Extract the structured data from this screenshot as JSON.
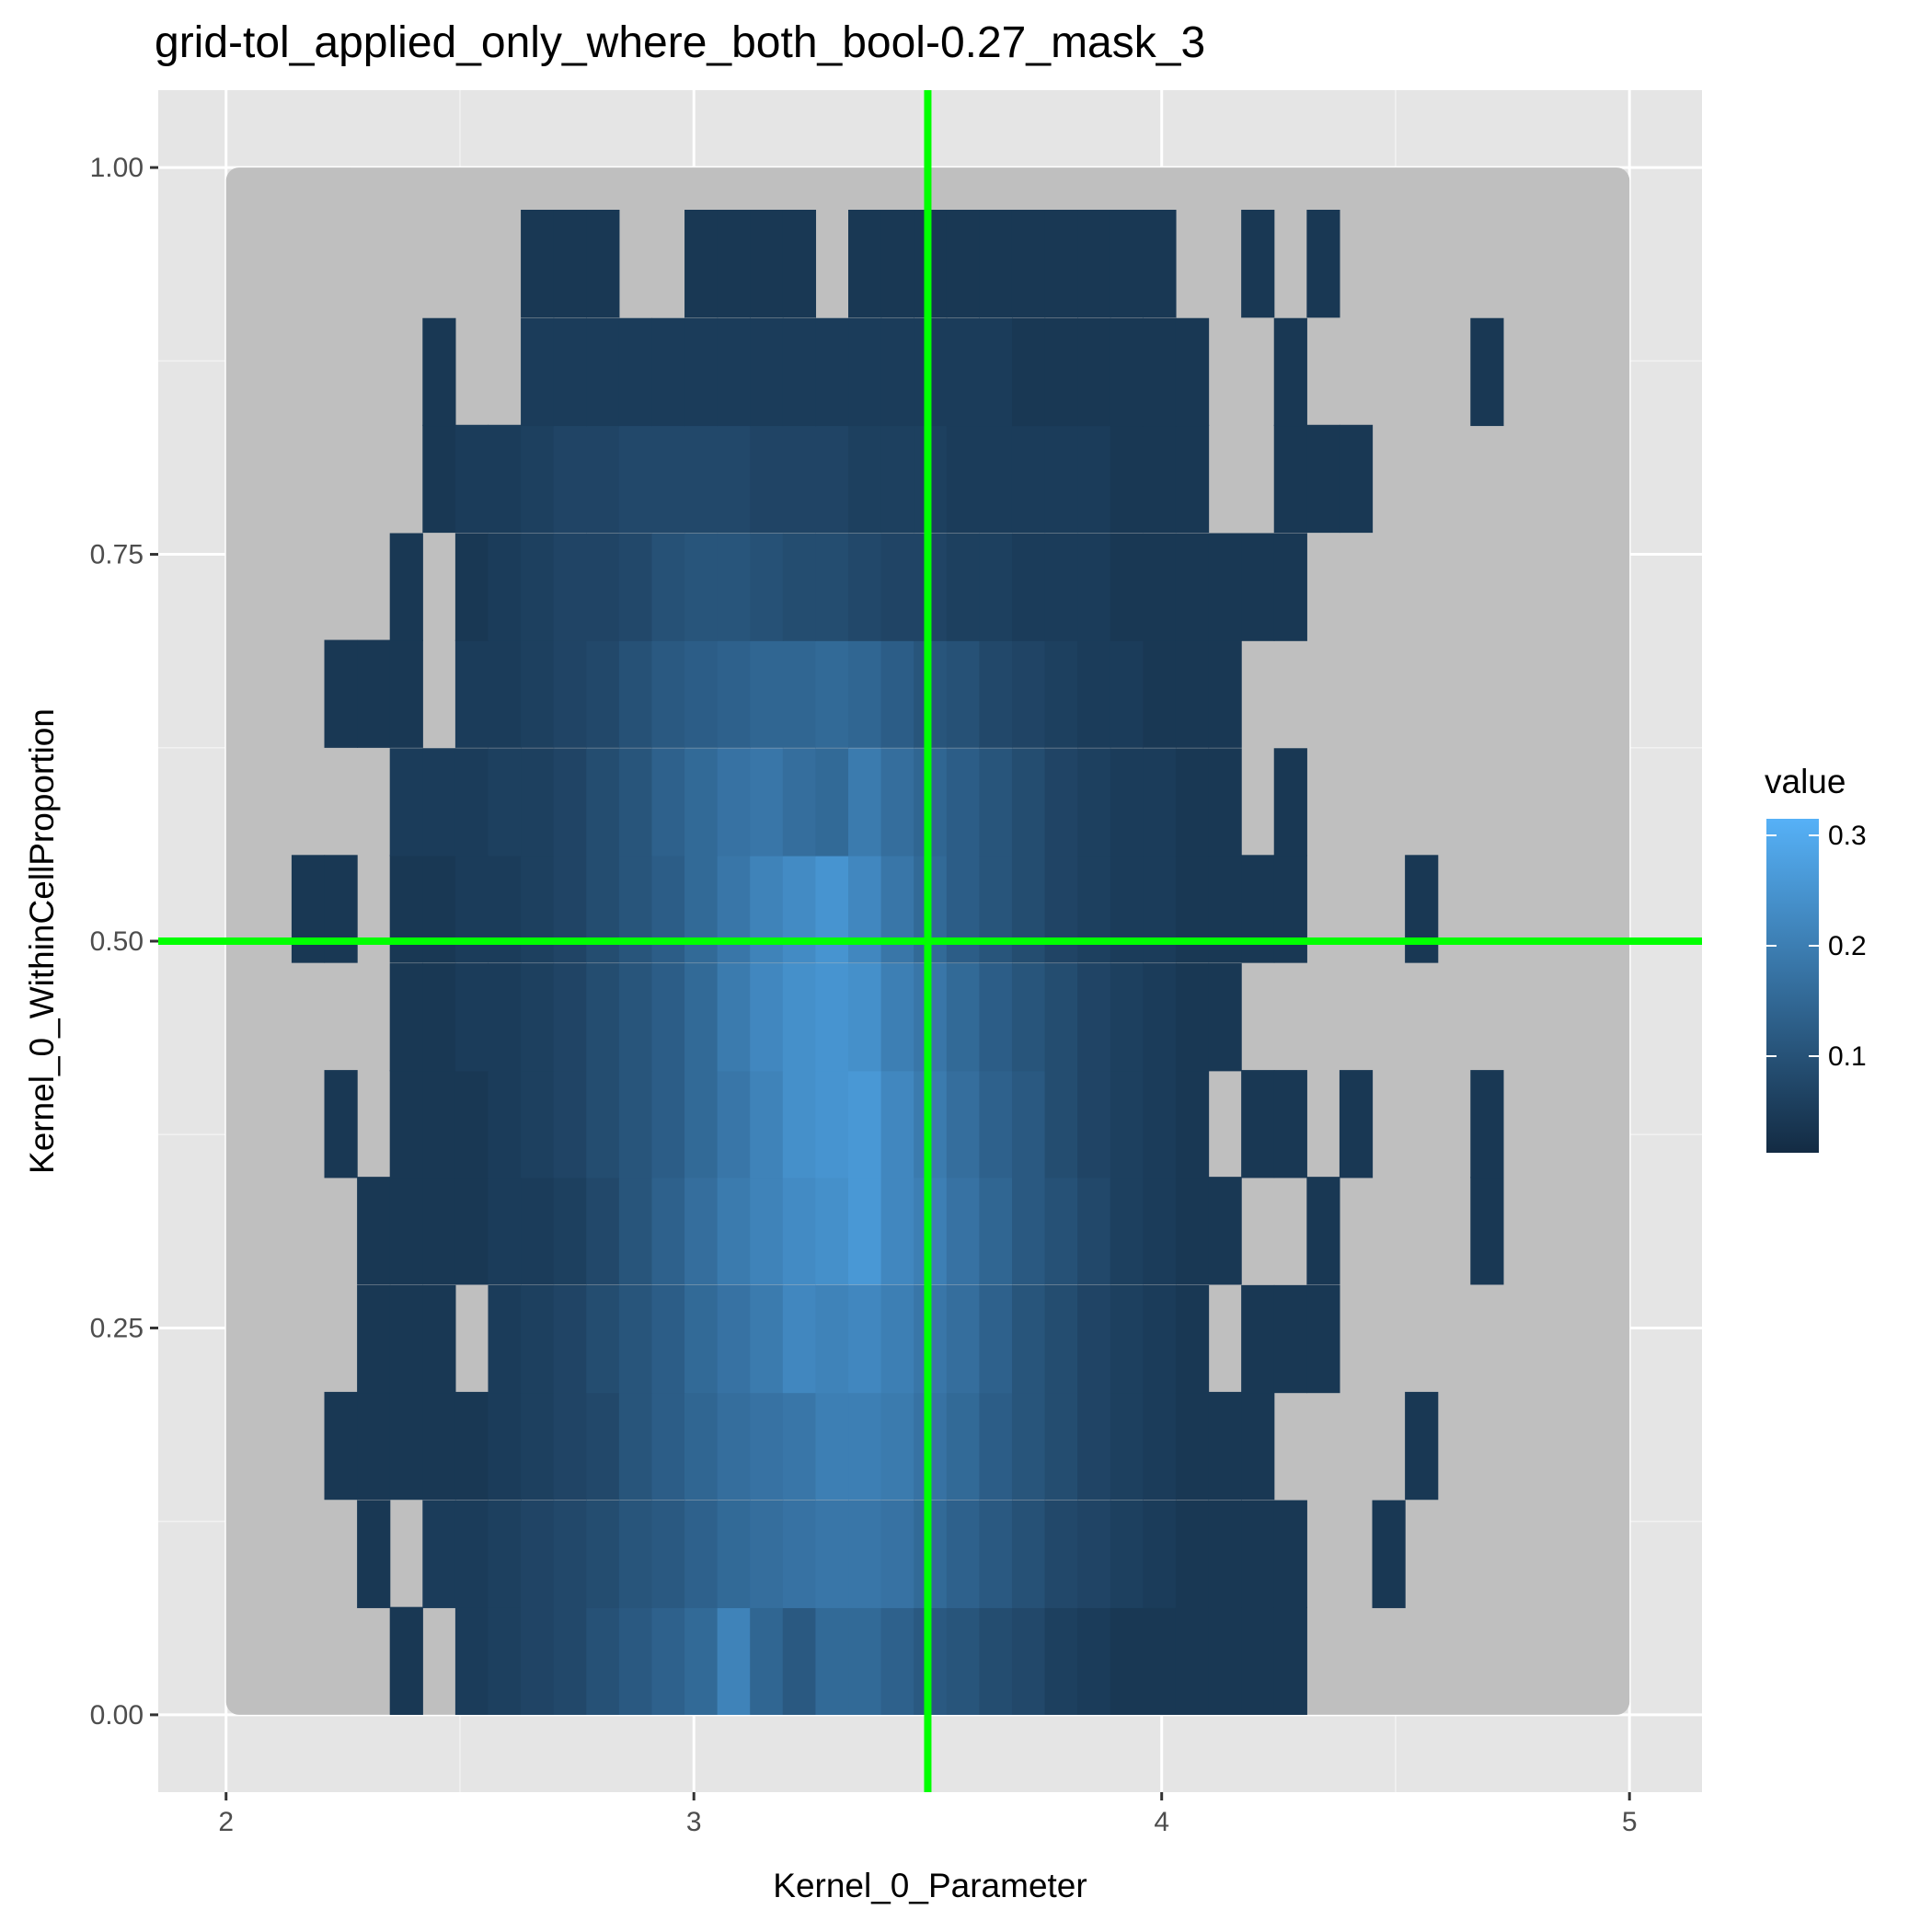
{
  "chart_data": {
    "type": "heatmap",
    "title": "grid-tol_applied_only_where_both_bool-0.27_mask_3",
    "xlabel": "Kernel_0_Parameter",
    "ylabel": "Kernel_0_WithinCellProportion",
    "xlim": [
      1.855,
      5.155
    ],
    "ylim": [
      -0.05,
      1.05
    ],
    "x_ticks": [
      2,
      3,
      4,
      5
    ],
    "x_tick_labels": [
      "2",
      "3",
      "4",
      "5"
    ],
    "y_ticks": [
      0,
      0.25,
      0.5,
      0.75,
      1.0
    ],
    "y_tick_labels": [
      "0.00",
      "0.25",
      "0.50",
      "0.75",
      "1.00"
    ],
    "grid": true,
    "panel_background": "#e5e5e5",
    "domain_fill": "#bfbfbf",
    "domain": {
      "x": [
        2,
        5
      ],
      "y": [
        0,
        1
      ]
    },
    "cell_width": 0.07,
    "cell_height": 0.0694,
    "x_start": 2.14,
    "y_centers": [
      0.035,
      0.104,
      0.174,
      0.243,
      0.313,
      0.382,
      0.451,
      0.521,
      0.59,
      0.66,
      0.729,
      0.799,
      0.868,
      0.938
    ],
    "colorscale": {
      "low": "#132b43",
      "high": "#56b1f7",
      "min": 0.0,
      "max": 0.32
    },
    "reference_lines": {
      "x": 3.5,
      "y": 0.5,
      "color": "#00ff00"
    },
    "legend": {
      "title": "value",
      "position": "right",
      "breaks": [
        0.1,
        0.2,
        0.3
      ],
      "labels": [
        "0.1",
        "0.2",
        "0.3"
      ]
    },
    "rows": [
      {
        "y": 0.035,
        "start_col": 0,
        "values": [
          null,
          null,
          null,
          0.03,
          null,
          0.04,
          0.05,
          0.06,
          0.07,
          0.09,
          0.11,
          0.13,
          0.15,
          0.21,
          0.14,
          0.11,
          0.15,
          0.15,
          0.13,
          0.11,
          0.1,
          0.08,
          0.07,
          0.05,
          0.04,
          0.03,
          0.03,
          0.03,
          0.03,
          0.03,
          0.03
        ]
      },
      {
        "y": 0.104,
        "start_col": 0,
        "values": [
          null,
          null,
          0.03,
          null,
          0.04,
          0.04,
          0.05,
          0.06,
          0.07,
          0.08,
          0.1,
          0.11,
          0.13,
          0.15,
          0.16,
          0.17,
          0.18,
          0.18,
          0.17,
          0.15,
          0.13,
          0.11,
          0.09,
          0.07,
          0.06,
          0.05,
          0.04,
          0.03,
          0.03,
          0.03,
          0.03,
          null,
          null,
          0.03
        ]
      },
      {
        "y": 0.174,
        "start_col": 0,
        "values": [
          null,
          0.03,
          0.03,
          0.03,
          0.03,
          0.03,
          0.04,
          0.05,
          0.06,
          0.07,
          0.1,
          0.12,
          0.14,
          0.16,
          0.17,
          0.18,
          0.2,
          0.2,
          0.19,
          0.17,
          0.15,
          0.12,
          0.1,
          0.08,
          0.06,
          0.05,
          0.04,
          0.03,
          0.03,
          0.03,
          null,
          null,
          null,
          null,
          0.03
        ]
      },
      {
        "y": 0.243,
        "start_col": 0,
        "values": [
          null,
          null,
          0.03,
          0.03,
          0.03,
          null,
          0.04,
          0.05,
          0.06,
          0.08,
          0.1,
          0.12,
          0.15,
          0.17,
          0.19,
          0.22,
          0.21,
          0.22,
          0.2,
          0.18,
          0.16,
          0.13,
          0.1,
          0.08,
          0.06,
          0.05,
          0.04,
          0.03,
          null,
          0.03,
          0.03,
          0.03
        ]
      },
      {
        "y": 0.313,
        "start_col": 0,
        "values": [
          null,
          null,
          0.03,
          0.03,
          0.03,
          0.03,
          0.04,
          0.04,
          0.05,
          0.07,
          0.1,
          0.13,
          0.16,
          0.19,
          0.21,
          0.23,
          0.24,
          0.26,
          0.22,
          0.2,
          0.17,
          0.14,
          0.11,
          0.09,
          0.07,
          0.05,
          0.04,
          0.03,
          0.03,
          null,
          null,
          0.03,
          null,
          null,
          null,
          null,
          0.03
        ]
      },
      {
        "y": 0.382,
        "start_col": 0,
        "values": [
          null,
          0.03,
          null,
          0.03,
          0.03,
          0.03,
          0.04,
          0.05,
          0.06,
          0.08,
          0.1,
          0.12,
          0.15,
          0.18,
          0.21,
          0.24,
          0.25,
          0.26,
          0.22,
          0.19,
          0.16,
          0.13,
          0.11,
          0.08,
          0.06,
          0.05,
          0.04,
          0.03,
          null,
          0.03,
          0.03,
          null,
          0.03,
          null,
          null,
          null,
          0.03
        ]
      },
      {
        "y": 0.451,
        "start_col": 0,
        "values": [
          null,
          null,
          null,
          0.03,
          0.03,
          0.04,
          0.04,
          0.05,
          0.06,
          0.08,
          0.1,
          0.12,
          0.15,
          0.19,
          0.22,
          0.24,
          0.25,
          0.24,
          0.2,
          0.18,
          0.15,
          0.12,
          0.1,
          0.08,
          0.06,
          0.05,
          0.04,
          0.03,
          0.03
        ]
      },
      {
        "y": 0.521,
        "start_col": 0,
        "values": [
          0.03,
          0.03,
          null,
          0.03,
          0.03,
          0.04,
          0.04,
          0.05,
          0.06,
          0.08,
          0.1,
          0.12,
          0.15,
          0.18,
          0.21,
          0.23,
          0.25,
          0.22,
          0.18,
          0.15,
          0.12,
          0.1,
          0.08,
          0.06,
          0.05,
          0.04,
          0.04,
          0.03,
          0.03,
          0.03,
          0.03,
          null,
          null,
          null,
          0.03
        ]
      },
      {
        "y": 0.59,
        "start_col": 0,
        "values": [
          null,
          null,
          null,
          0.04,
          0.04,
          0.04,
          0.05,
          0.05,
          0.06,
          0.08,
          0.1,
          0.13,
          0.15,
          0.17,
          0.18,
          0.16,
          0.15,
          0.19,
          0.16,
          0.14,
          0.12,
          0.1,
          0.08,
          0.06,
          0.05,
          0.04,
          0.04,
          0.03,
          0.03,
          null,
          0.03
        ]
      },
      {
        "y": 0.66,
        "start_col": 0,
        "values": [
          null,
          0.03,
          0.03,
          0.03,
          null,
          0.04,
          0.04,
          0.05,
          0.06,
          0.07,
          0.09,
          0.11,
          0.12,
          0.13,
          0.14,
          0.14,
          0.15,
          0.14,
          0.12,
          0.1,
          0.09,
          0.07,
          0.06,
          0.05,
          0.04,
          0.04,
          0.03,
          0.03,
          0.03
        ]
      },
      {
        "y": 0.729,
        "start_col": 0,
        "values": [
          null,
          null,
          null,
          0.03,
          null,
          0.03,
          0.04,
          0.05,
          0.06,
          0.06,
          0.07,
          0.09,
          0.1,
          0.1,
          0.09,
          0.08,
          0.08,
          0.07,
          0.06,
          0.06,
          0.05,
          0.05,
          0.04,
          0.04,
          0.04,
          0.03,
          0.03,
          0.03,
          0.03,
          0.03,
          0.03
        ]
      },
      {
        "y": 0.799,
        "start_col": 0,
        "values": [
          null,
          null,
          null,
          null,
          0.03,
          0.04,
          0.04,
          0.05,
          0.06,
          0.06,
          0.07,
          0.07,
          0.07,
          0.07,
          0.06,
          0.06,
          0.06,
          0.05,
          0.05,
          0.05,
          0.04,
          0.04,
          0.04,
          0.04,
          0.04,
          0.03,
          0.03,
          0.03,
          null,
          null,
          0.03,
          0.03,
          0.03
        ]
      },
      {
        "y": 0.868,
        "start_col": 0,
        "values": [
          null,
          null,
          null,
          null,
          0.03,
          null,
          null,
          0.04,
          0.04,
          0.04,
          0.04,
          0.04,
          0.04,
          0.04,
          0.04,
          0.04,
          0.04,
          0.04,
          0.04,
          0.04,
          0.04,
          0.04,
          0.03,
          0.03,
          0.03,
          0.03,
          0.03,
          0.03,
          null,
          null,
          0.03,
          null,
          null,
          null,
          null,
          null,
          0.03
        ]
      },
      {
        "y": 0.938,
        "start_col": 0,
        "values": [
          null,
          null,
          null,
          null,
          null,
          null,
          null,
          0.03,
          0.03,
          0.03,
          null,
          null,
          0.03,
          0.03,
          0.03,
          0.03,
          null,
          0.03,
          0.03,
          0.03,
          0.03,
          0.03,
          0.03,
          0.03,
          0.03,
          0.03,
          0.03,
          null,
          null,
          0.03,
          null,
          0.03
        ]
      }
    ]
  }
}
